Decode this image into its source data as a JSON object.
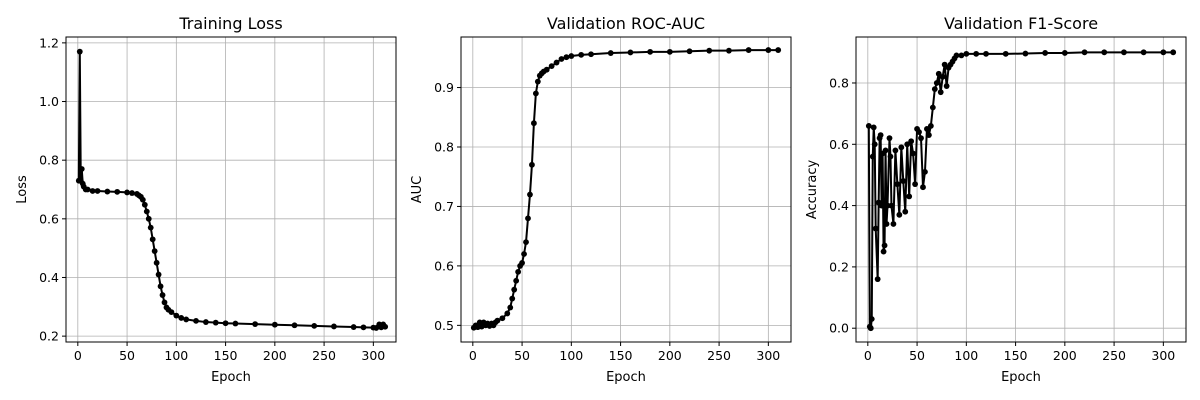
{
  "chart_data": [
    {
      "type": "line",
      "title": "Training Loss",
      "xlabel": "Epoch",
      "ylabel": "Loss",
      "xlim": [
        -12,
        323
      ],
      "ylim": [
        0.18,
        1.22
      ],
      "xticks": [
        0,
        50,
        100,
        150,
        200,
        250,
        300
      ],
      "yticks": [
        0.2,
        0.4,
        0.6,
        0.8,
        1.0,
        1.2
      ],
      "yformat": 1,
      "grid": true,
      "color": "#000000",
      "marker": "circle",
      "series": [
        {
          "x": [
            1,
            2,
            3,
            4,
            5,
            6,
            8,
            10,
            15,
            20,
            30,
            40,
            50,
            55,
            60,
            62,
            64,
            66,
            68,
            70,
            72,
            74,
            76,
            78,
            80,
            82,
            84,
            86,
            88,
            90,
            92,
            95,
            100,
            105,
            110,
            120,
            130,
            140,
            150,
            160,
            180,
            200,
            220,
            240,
            260,
            280,
            290,
            300,
            303,
            306,
            308,
            310,
            312
          ],
          "y": [
            0.73,
            1.17,
            0.73,
            0.77,
            0.72,
            0.71,
            0.7,
            0.7,
            0.695,
            0.695,
            0.693,
            0.692,
            0.69,
            0.688,
            0.685,
            0.68,
            0.675,
            0.665,
            0.648,
            0.625,
            0.6,
            0.57,
            0.53,
            0.49,
            0.45,
            0.41,
            0.37,
            0.34,
            0.315,
            0.298,
            0.29,
            0.282,
            0.27,
            0.262,
            0.257,
            0.252,
            0.248,
            0.246,
            0.244,
            0.243,
            0.241,
            0.239,
            0.237,
            0.235,
            0.233,
            0.231,
            0.23,
            0.229,
            0.228,
            0.24,
            0.23,
            0.24,
            0.232
          ]
        }
      ]
    },
    {
      "type": "line",
      "title": "Validation ROC-AUC",
      "xlabel": "Epoch",
      "ylabel": "AUC",
      "xlim": [
        -12,
        323
      ],
      "ylim": [
        0.472,
        0.985
      ],
      "xticks": [
        0,
        50,
        100,
        150,
        200,
        250,
        300
      ],
      "yticks": [
        0.5,
        0.6,
        0.7,
        0.8,
        0.9
      ],
      "yformat": 1,
      "grid": true,
      "color": "#000000",
      "marker": "circle",
      "series": [
        {
          "x": [
            1,
            3,
            5,
            7,
            9,
            11,
            13,
            15,
            17,
            19,
            21,
            23,
            25,
            30,
            35,
            38,
            40,
            42,
            44,
            46,
            48,
            50,
            52,
            54,
            56,
            58,
            60,
            62,
            64,
            66,
            68,
            70,
            72,
            75,
            80,
            85,
            90,
            95,
            100,
            110,
            120,
            140,
            160,
            180,
            200,
            220,
            240,
            260,
            280,
            300,
            310
          ],
          "y": [
            0.496,
            0.5,
            0.497,
            0.505,
            0.498,
            0.505,
            0.5,
            0.503,
            0.499,
            0.503,
            0.5,
            0.505,
            0.508,
            0.512,
            0.52,
            0.53,
            0.545,
            0.56,
            0.575,
            0.59,
            0.6,
            0.605,
            0.62,
            0.64,
            0.68,
            0.72,
            0.77,
            0.84,
            0.89,
            0.91,
            0.92,
            0.924,
            0.927,
            0.93,
            0.936,
            0.942,
            0.948,
            0.951,
            0.953,
            0.955,
            0.956,
            0.958,
            0.959,
            0.96,
            0.96,
            0.961,
            0.962,
            0.962,
            0.963,
            0.963,
            0.963
          ]
        }
      ]
    },
    {
      "type": "line",
      "title": "Validation F1-Score",
      "xlabel": "Epoch",
      "ylabel": "Accuracy",
      "xlim": [
        -12,
        323
      ],
      "ylim": [
        -0.045,
        0.95
      ],
      "xticks": [
        0,
        50,
        100,
        150,
        200,
        250,
        300
      ],
      "yticks": [
        0.0,
        0.2,
        0.4,
        0.6,
        0.8
      ],
      "yformat": 1,
      "grid": true,
      "color": "#000000",
      "marker": "circle",
      "series": [
        {
          "x": [
            1,
            2,
            3,
            4,
            5,
            6,
            7,
            8,
            10,
            11,
            12,
            13,
            14,
            15,
            16,
            17,
            18,
            19,
            20,
            22,
            23,
            24,
            26,
            28,
            30,
            32,
            34,
            36,
            38,
            40,
            42,
            44,
            46,
            48,
            50,
            52,
            54,
            56,
            58,
            60,
            62,
            64,
            66,
            68,
            70,
            72,
            74,
            76,
            78,
            80,
            82,
            84,
            86,
            88,
            90,
            95,
            100,
            110,
            120,
            140,
            160,
            180,
            200,
            220,
            240,
            260,
            280,
            300,
            310
          ],
          "y": [
            0.66,
            0.005,
            0.0,
            0.03,
            0.56,
            0.655,
            0.6,
            0.325,
            0.16,
            0.41,
            0.62,
            0.63,
            0.4,
            0.57,
            0.25,
            0.27,
            0.58,
            0.34,
            0.4,
            0.62,
            0.56,
            0.4,
            0.34,
            0.58,
            0.47,
            0.37,
            0.59,
            0.48,
            0.38,
            0.6,
            0.43,
            0.61,
            0.57,
            0.47,
            0.65,
            0.64,
            0.62,
            0.46,
            0.51,
            0.65,
            0.63,
            0.66,
            0.72,
            0.78,
            0.8,
            0.83,
            0.77,
            0.82,
            0.86,
            0.79,
            0.85,
            0.86,
            0.87,
            0.88,
            0.89,
            0.89,
            0.895,
            0.895,
            0.895,
            0.895,
            0.896,
            0.898,
            0.898,
            0.9,
            0.9,
            0.9,
            0.9,
            0.9,
            0.9
          ]
        }
      ]
    }
  ]
}
